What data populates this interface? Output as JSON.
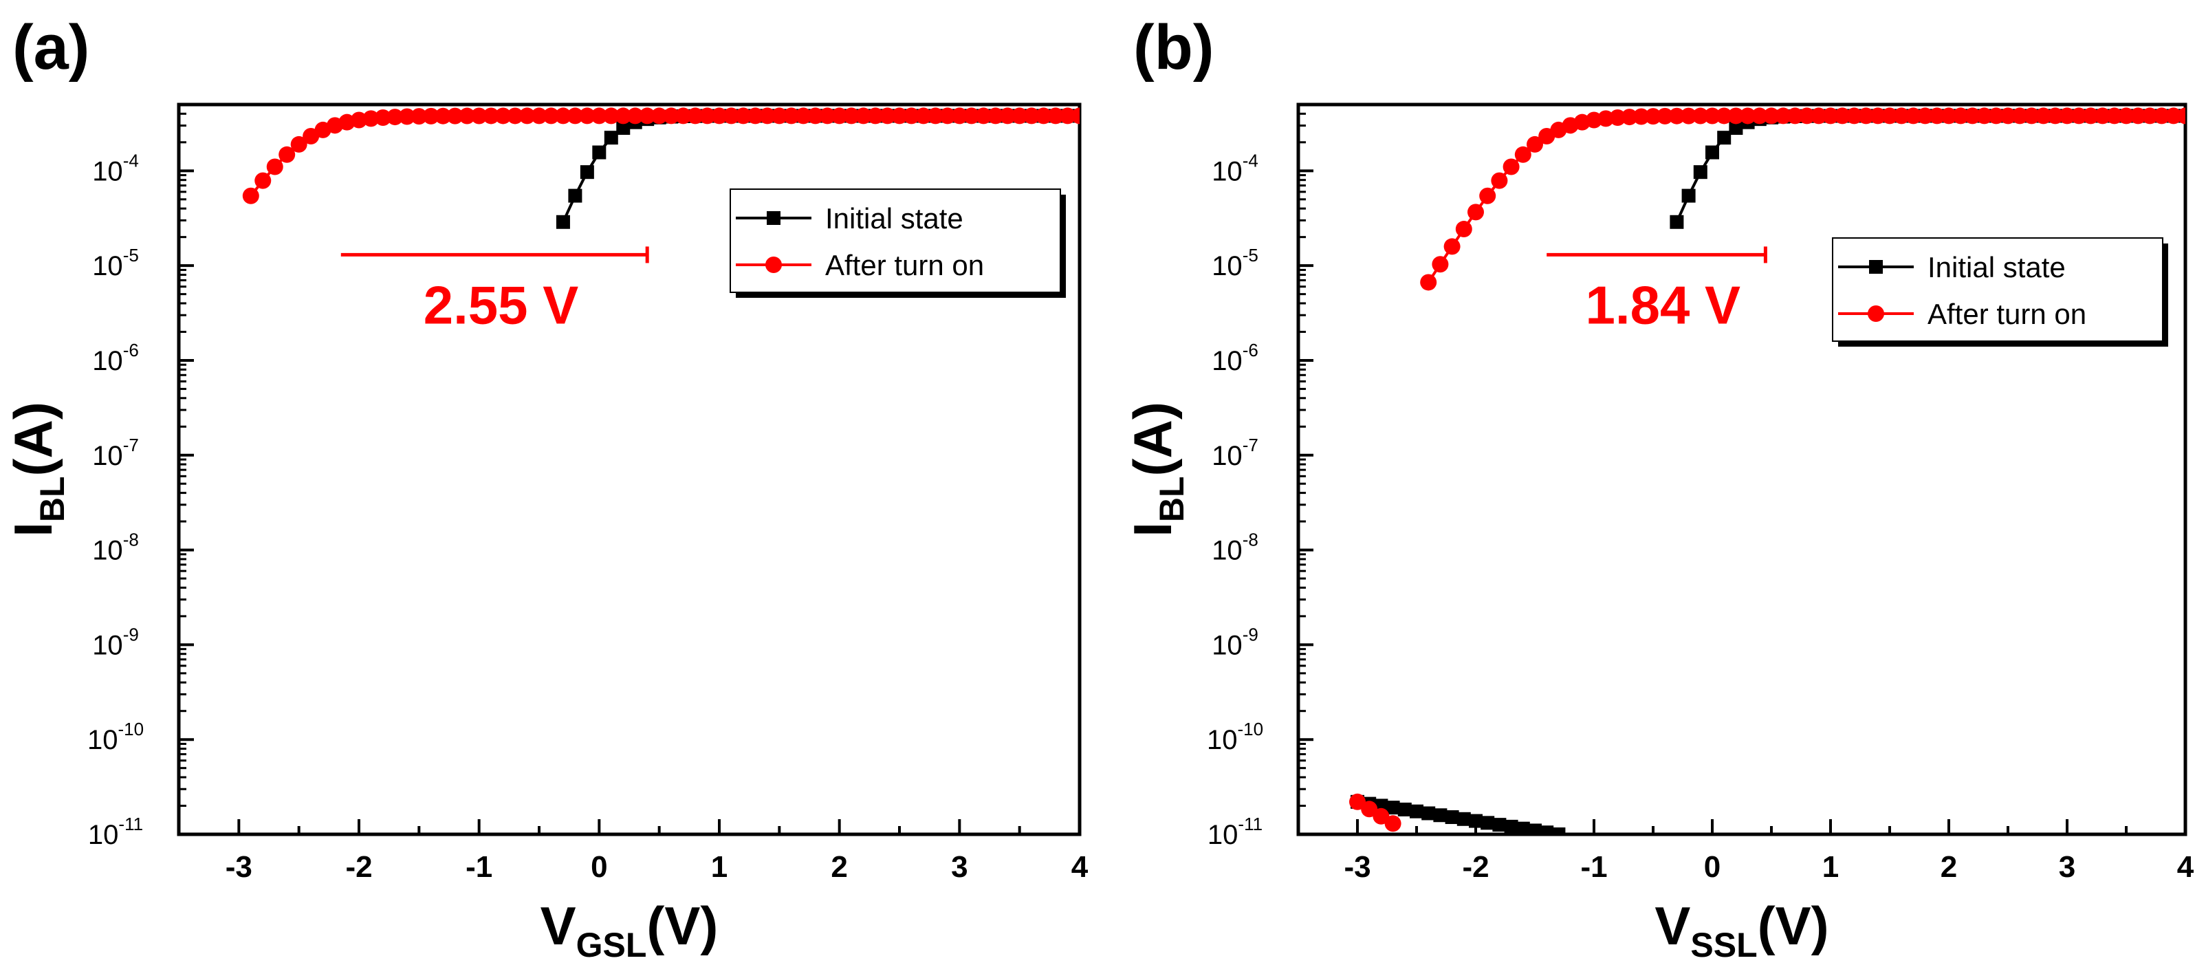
{
  "figure": {
    "panel_a_label": "(a)",
    "panel_b_label": "(b)"
  },
  "chart_data": [
    {
      "type": "line",
      "panel": "(a)",
      "y_scale": "log",
      "xlim": [
        -3.5,
        4
      ],
      "ylim": [
        1e-11,
        0.0005
      ],
      "x_ticks": [
        "-3",
        "-2",
        "-1",
        "0",
        "1",
        "2",
        "3",
        "4"
      ],
      "y_ticks": [
        {
          "base": "10",
          "exp": "-11"
        },
        {
          "base": "10",
          "exp": "-10"
        },
        {
          "base": "10",
          "exp": "-9"
        },
        {
          "base": "10",
          "exp": "-8"
        },
        {
          "base": "10",
          "exp": "-7"
        },
        {
          "base": "10",
          "exp": "-6"
        },
        {
          "base": "10",
          "exp": "-5"
        },
        {
          "base": "10",
          "exp": "-4"
        }
      ],
      "xlabel": {
        "main": "V",
        "sub": "GSL",
        "rest": "(V)"
      },
      "ylabel": {
        "main": "I",
        "sub": "BL",
        "rest": "(A)"
      },
      "legend": [
        "Initial state",
        "After turn on"
      ],
      "legend_position": "right",
      "annotation": {
        "text": "2.55 V",
        "x_from": -2.15,
        "x_to": 0.4,
        "y": 1.3e-05,
        "color": "#ff0000"
      },
      "series": [
        {
          "name": "Initial state",
          "color": "#000000",
          "marker": "square",
          "vth": 0.05,
          "ss": 0.14,
          "isat": 0.00038,
          "p": 1.0,
          "x_start": -0.3,
          "x_end": 4.0,
          "step": 0.1,
          "off": null
        },
        {
          "name": "After turn on",
          "color": "#ff0000",
          "marker": "circle",
          "vth": -2.5,
          "ss": 0.19,
          "isat": 0.00038,
          "p": 0.85,
          "x_start": -2.9,
          "x_end": 4.0,
          "step": 0.1,
          "off": null
        }
      ]
    },
    {
      "type": "line",
      "panel": "(b)",
      "y_scale": "log",
      "xlim": [
        -3.5,
        4
      ],
      "ylim": [
        1e-11,
        0.0005
      ],
      "x_ticks": [
        "-3",
        "-2",
        "-1",
        "0",
        "1",
        "2",
        "3",
        "4"
      ],
      "y_ticks": [
        {
          "base": "10",
          "exp": "-11"
        },
        {
          "base": "10",
          "exp": "-10"
        },
        {
          "base": "10",
          "exp": "-9"
        },
        {
          "base": "10",
          "exp": "-8"
        },
        {
          "base": "10",
          "exp": "-7"
        },
        {
          "base": "10",
          "exp": "-6"
        },
        {
          "base": "10",
          "exp": "-5"
        },
        {
          "base": "10",
          "exp": "-4"
        }
      ],
      "xlabel": {
        "main": "V",
        "sub": "SSL",
        "rest": "(V)"
      },
      "ylabel": {
        "main": "I",
        "sub": "BL",
        "rest": "(A)"
      },
      "legend": [
        "Initial state",
        "After turn on"
      ],
      "legend_position": "right",
      "annotation": {
        "text": "1.84 V",
        "x_from": -1.4,
        "x_to": 0.45,
        "y": 1.3e-05,
        "color": "#ff0000"
      },
      "series": [
        {
          "name": "Initial state",
          "color": "#000000",
          "marker": "square",
          "vth": 0.05,
          "ss": 0.14,
          "isat": 0.00038,
          "p": 1.0,
          "x_start": -0.3,
          "x_end": 4.0,
          "step": 0.1,
          "off": {
            "x_start": -3.0,
            "x_end": -1.3,
            "step": 0.1,
            "y_start": 2.2e-11,
            "y_end": 1e-11
          }
        },
        {
          "name": "After turn on",
          "color": "#ff0000",
          "marker": "circle",
          "vth": -1.5,
          "ss": 0.19,
          "isat": 0.00038,
          "p": 0.85,
          "x_start": -2.4,
          "x_end": 4.0,
          "step": 0.1,
          "off": {
            "x_start": -3.0,
            "x_end": -2.7,
            "step": 0.1,
            "y_start": 2.2e-11,
            "y_end": 1.3e-11
          }
        }
      ]
    }
  ]
}
